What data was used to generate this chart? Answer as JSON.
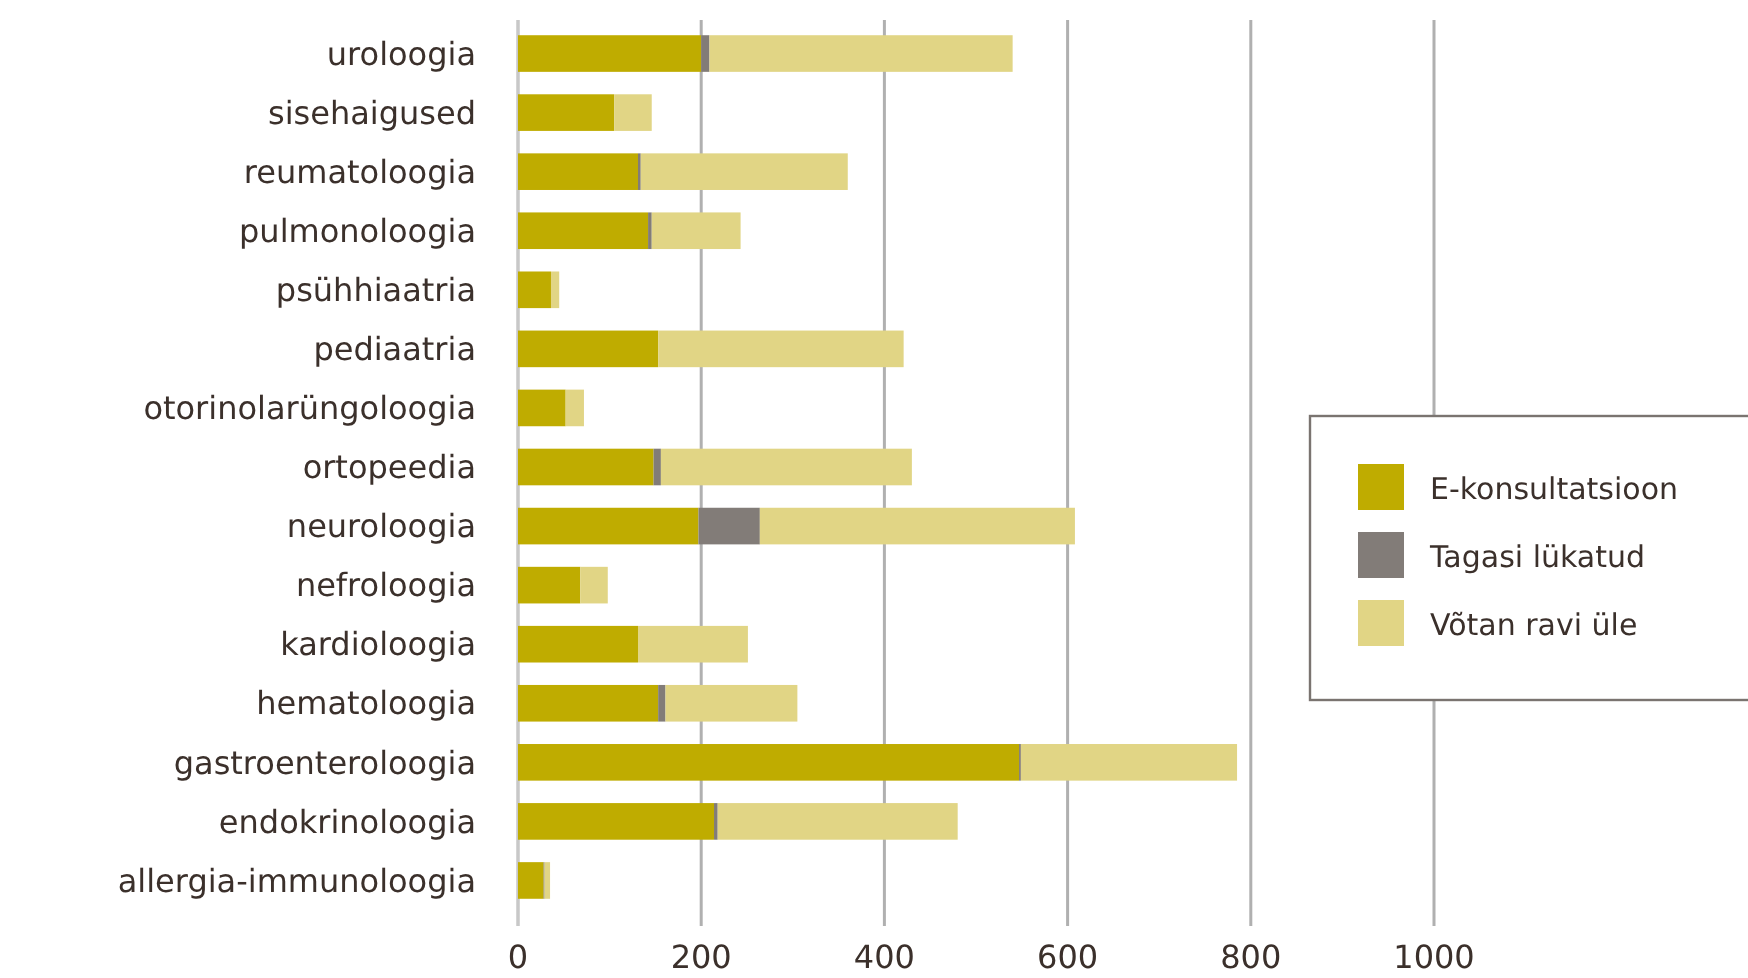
{
  "chart_data": {
    "type": "bar",
    "orientation": "horizontal",
    "stacked": true,
    "categories": [
      "uroloogia",
      "sisehaigused",
      "reumatoloogia",
      "pulmonoloogia",
      "psühhiaatria",
      "pediaatria",
      "otorinolarüngoloogia",
      "ortopeedia",
      "neuroloogia",
      "nefroloogia",
      "kardioloogia",
      "hematoloogia",
      "gastroenteroloogia",
      "endokrinoloogia",
      "allergia-immunoloogia"
    ],
    "series": [
      {
        "name": "E-konsultatsioon",
        "color": "#bfac00",
        "values": [
          200,
          105,
          131,
          142,
          36,
          153,
          52,
          148,
          197,
          68,
          131,
          153,
          547,
          214,
          28
        ]
      },
      {
        "name": "Tagasi lükatud",
        "color": "#827c78",
        "values": [
          9,
          0,
          3,
          4,
          0,
          0,
          0,
          8,
          67,
          0,
          0,
          8,
          2,
          4,
          1
        ]
      },
      {
        "name": "Võtan ravi üle",
        "color": "#e1d585",
        "values": [
          331,
          41,
          226,
          97,
          9,
          268,
          20,
          274,
          344,
          30,
          120,
          144,
          236,
          262,
          6
        ]
      }
    ],
    "xlim": [
      0,
      1000
    ],
    "xticks": [
      0,
      200,
      400,
      600,
      800,
      1000
    ],
    "grid": "x",
    "legend": "right"
  }
}
